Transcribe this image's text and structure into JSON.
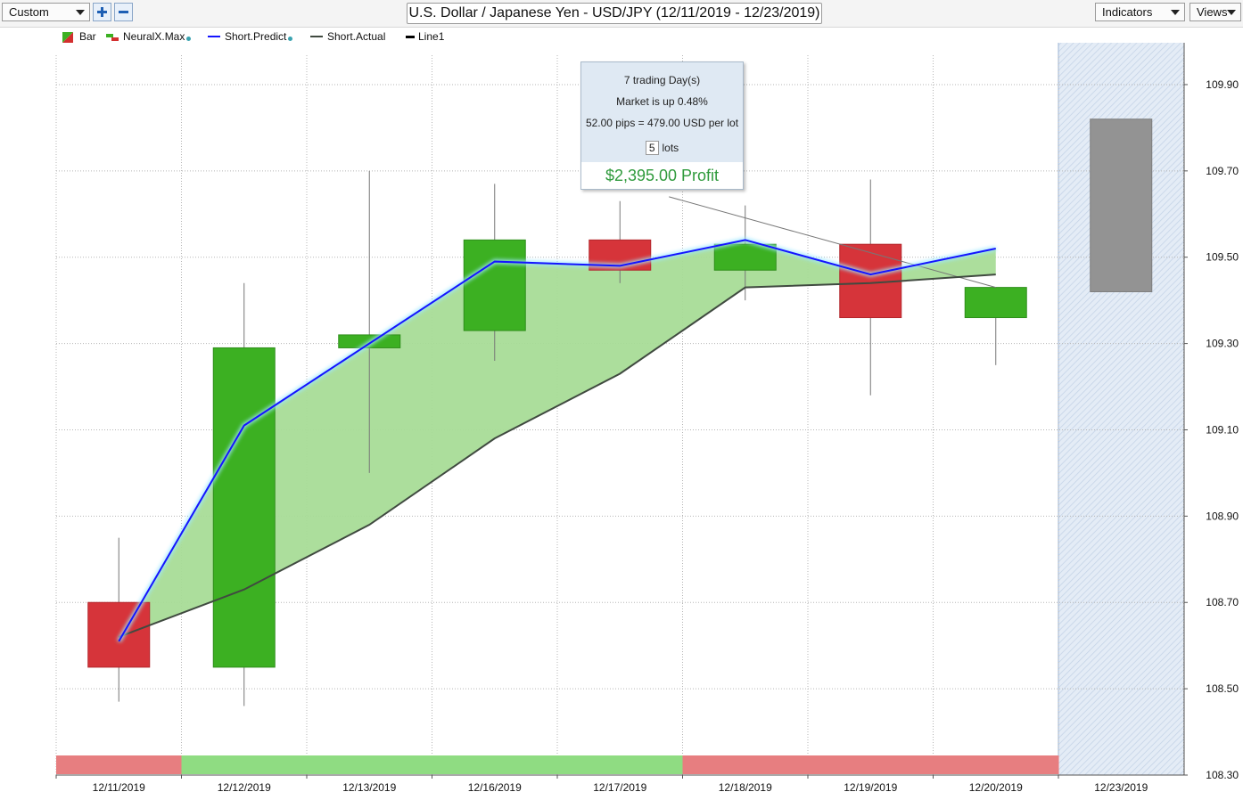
{
  "toolbar": {
    "preset": "Custom",
    "title": "U.S. Dollar / Japanese Yen - USD/JPY (12/11/2019 - 12/23/2019)",
    "indicators_label": "Indicators",
    "views_label": "Views",
    "zoom_in_icon": "plus-icon",
    "zoom_out_icon": "minus-icon"
  },
  "legend": [
    {
      "label": "Bar",
      "color": "#3cb022",
      "color2": "#d32f2f"
    },
    {
      "label": "NeuralX.Max",
      "color": "#3cb022",
      "color2": "#d32f2f"
    },
    {
      "label": "Short.Predict",
      "color": "#1414ff"
    },
    {
      "label": "Short.Actual",
      "color": "#404a40"
    },
    {
      "label": "Line1",
      "color": "#000000"
    }
  ],
  "tooltip": {
    "days": "7 trading Day(s)",
    "market": "Market is up 0.48%",
    "pips": "52.00 pips = 479.00 USD per lot",
    "lots_value": "5",
    "lots_label": "lots",
    "profit": "$2,395.00 Profit",
    "profit_color": "#2f9a3c"
  },
  "chart_data": {
    "type": "candlestick",
    "title": "U.S. Dollar / Japanese Yen - USD/JPY (12/11/2019 - 12/23/2019)",
    "categories": [
      "12/11/2019",
      "12/12/2019",
      "12/13/2019",
      "12/16/2019",
      "12/17/2019",
      "12/18/2019",
      "12/19/2019",
      "12/20/2019",
      "12/23/2019"
    ],
    "ylim": [
      108.3,
      110.0
    ],
    "yticks": [
      "108.30",
      "108.50",
      "108.70",
      "108.90",
      "109.10",
      "109.30",
      "109.50",
      "109.70",
      "109.90"
    ],
    "grid": true,
    "colors": {
      "up": "#3cb022",
      "down": "#d6343a",
      "forecast": "#939393",
      "band": "#a8dc97",
      "predict": "#1414ff",
      "actual": "#404a40"
    },
    "candles": [
      {
        "date": "12/11/2019",
        "open": 108.7,
        "high": 108.85,
        "low": 108.47,
        "close": 108.55
      },
      {
        "date": "12/12/2019",
        "open": 108.55,
        "high": 109.44,
        "low": 108.46,
        "close": 109.29
      },
      {
        "date": "12/13/2019",
        "open": 109.29,
        "high": 109.7,
        "low": 109.0,
        "close": 109.32
      },
      {
        "date": "12/16/2019",
        "open": 109.33,
        "high": 109.67,
        "low": 109.26,
        "close": 109.54
      },
      {
        "date": "12/17/2019",
        "open": 109.54,
        "high": 109.63,
        "low": 109.44,
        "close": 109.47
      },
      {
        "date": "12/18/2019",
        "open": 109.47,
        "high": 109.62,
        "low": 109.4,
        "close": 109.53
      },
      {
        "date": "12/19/2019",
        "open": 109.53,
        "high": 109.68,
        "low": 109.18,
        "close": 109.36
      },
      {
        "date": "12/20/2019",
        "open": 109.36,
        "high": 109.43,
        "low": 109.25,
        "close": 109.43
      }
    ],
    "forecast_bar": {
      "date": "12/23/2019",
      "high": 109.82,
      "low": 109.42
    },
    "series": [
      {
        "name": "Short.Predict",
        "values": [
          108.61,
          109.11,
          109.3,
          109.49,
          109.48,
          109.54,
          109.46,
          109.52,
          null
        ]
      },
      {
        "name": "Short.Actual",
        "values": [
          108.62,
          108.73,
          108.88,
          109.08,
          109.23,
          109.43,
          109.44,
          109.46,
          null
        ]
      }
    ],
    "line1": {
      "from": [
        "12/17/2019",
        109.64
      ],
      "to": [
        "12/20/2019",
        109.43
      ]
    },
    "signal_strip": [
      "down",
      "up",
      "up",
      "up",
      "up",
      "down",
      "down",
      "down"
    ],
    "strip_colors": {
      "up": "#8fdc82",
      "down": "#e77e80"
    }
  }
}
